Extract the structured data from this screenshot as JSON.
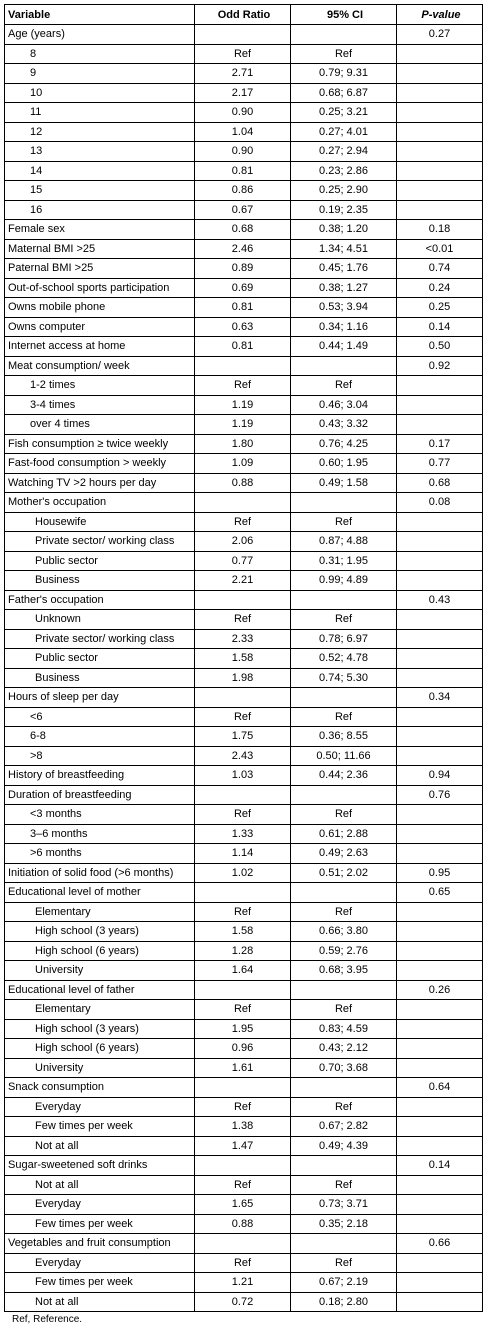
{
  "table": {
    "headers": [
      "Variable",
      "Odd Ratio",
      "95% CI",
      "P-value"
    ],
    "rows": [
      {
        "v": "Age (years)",
        "or": "",
        "ci": "",
        "p": "0.27",
        "level": 0
      },
      {
        "v": "8",
        "or": "Ref",
        "ci": "Ref",
        "p": "",
        "level": 1
      },
      {
        "v": "9",
        "or": "2.71",
        "ci": "0.79; 9.31",
        "p": "",
        "level": 1
      },
      {
        "v": "10",
        "or": "2.17",
        "ci": "0.68; 6.87",
        "p": "",
        "level": 1
      },
      {
        "v": "11",
        "or": "0.90",
        "ci": "0.25; 3.21",
        "p": "",
        "level": 1
      },
      {
        "v": "12",
        "or": "1.04",
        "ci": "0.27; 4.01",
        "p": "",
        "level": 1
      },
      {
        "v": "13",
        "or": "0.90",
        "ci": "0.27; 2.94",
        "p": "",
        "level": 1
      },
      {
        "v": "14",
        "or": "0.81",
        "ci": "0.23; 2.86",
        "p": "",
        "level": 1
      },
      {
        "v": "15",
        "or": "0.86",
        "ci": "0.25; 2.90",
        "p": "",
        "level": 1
      },
      {
        "v": "16",
        "or": "0.67",
        "ci": "0.19; 2.35",
        "p": "",
        "level": 1
      },
      {
        "v": "Female sex",
        "or": "0.68",
        "ci": "0.38; 1.20",
        "p": "0.18",
        "level": 0
      },
      {
        "v": "Maternal BMI >25",
        "or": "2.46",
        "ci": "1.34; 4.51",
        "p": "<0.01",
        "level": 0
      },
      {
        "v": "Paternal BMI >25",
        "or": "0.89",
        "ci": "0.45; 1.76",
        "p": "0.74",
        "level": 0
      },
      {
        "v": "Out-of-school sports participation",
        "or": "0.69",
        "ci": "0.38; 1.27",
        "p": "0.24",
        "level": 0
      },
      {
        "v": "Owns mobile phone",
        "or": "0.81",
        "ci": "0.53; 3.94",
        "p": "0.25",
        "level": 0
      },
      {
        "v": "Owns computer",
        "or": "0.63",
        "ci": "0.34; 1.16",
        "p": "0.14",
        "level": 0
      },
      {
        "v": "Internet access at home",
        "or": "0.81",
        "ci": "0.44; 1.49",
        "p": "0.50",
        "level": 0
      },
      {
        "v": "Meat consumption/ week",
        "or": "",
        "ci": "",
        "p": "0.92",
        "level": 0
      },
      {
        "v": "1-2 times",
        "or": "Ref",
        "ci": "Ref",
        "p": "",
        "level": 1
      },
      {
        "v": "3-4 times",
        "or": "1.19",
        "ci": "0.46; 3.04",
        "p": "",
        "level": 1
      },
      {
        "v": "over 4 times",
        "or": "1.19",
        "ci": "0.43; 3.32",
        "p": "",
        "level": 1
      },
      {
        "v": "Fish consumption ≥ twice weekly",
        "or": "1.80",
        "ci": "0.76; 4.25",
        "p": "0.17",
        "level": 0
      },
      {
        "v": "Fast-food consumption  > weekly",
        "or": "1.09",
        "ci": "0.60; 1.95",
        "p": "0.77",
        "level": 0
      },
      {
        "v": "Watching TV  >2 hours per day",
        "or": "0.88",
        "ci": "0.49; 1.58",
        "p": "0.68",
        "level": 0
      },
      {
        "v": "Mother's occupation",
        "or": "",
        "ci": "",
        "p": "0.08",
        "level": 0
      },
      {
        "v": "Housewife",
        "or": "Ref",
        "ci": "Ref",
        "p": "",
        "level": 2
      },
      {
        "v": "Private sector/ working class",
        "or": "2.06",
        "ci": "0.87; 4.88",
        "p": "",
        "level": 2
      },
      {
        "v": "Public sector",
        "or": "0.77",
        "ci": "0.31; 1.95",
        "p": "",
        "level": 2
      },
      {
        "v": "Business",
        "or": "2.21",
        "ci": "0.99; 4.89",
        "p": "",
        "level": 2
      },
      {
        "v": "Father's occupation",
        "or": "",
        "ci": "",
        "p": "0.43",
        "level": 0
      },
      {
        "v": "Unknown",
        "or": "Ref",
        "ci": "Ref",
        "p": "",
        "level": 2
      },
      {
        "v": "Private sector/ working class",
        "or": "2.33",
        "ci": "0.78; 6.97",
        "p": "",
        "level": 2
      },
      {
        "v": "Public sector",
        "or": "1.58",
        "ci": "0.52; 4.78",
        "p": "",
        "level": 2
      },
      {
        "v": "Business",
        "or": "1.98",
        "ci": "0.74; 5.30",
        "p": "",
        "level": 2
      },
      {
        "v": "Hours of sleep per day",
        "or": "",
        "ci": "",
        "p": "0.34",
        "level": 0
      },
      {
        "v": "<6",
        "or": "Ref",
        "ci": "Ref",
        "p": "",
        "level": 1
      },
      {
        "v": "6-8",
        "or": "1.75",
        "ci": "0.36; 8.55",
        "p": "",
        "level": 1
      },
      {
        "v": ">8",
        "or": "2.43",
        "ci": "0.50; 11.66",
        "p": "",
        "level": 1
      },
      {
        "v": "History of breastfeeding",
        "or": "1.03",
        "ci": "0.44; 2.36",
        "p": "0.94",
        "level": 0
      },
      {
        "v": "Duration of breastfeeding",
        "or": "",
        "ci": "",
        "p": "0.76",
        "level": 0
      },
      {
        "v": "<3 months",
        "or": "Ref",
        "ci": "Ref",
        "p": "",
        "level": 1
      },
      {
        "v": "3–6 months",
        "or": "1.33",
        "ci": "0.61; 2.88",
        "p": "",
        "level": 1
      },
      {
        "v": ">6 months",
        "or": "1.14",
        "ci": "0.49; 2.63",
        "p": "",
        "level": 1
      },
      {
        "v": "Initiation of solid food (>6 months)",
        "or": "1.02",
        "ci": "0.51; 2.02",
        "p": "0.95",
        "level": 0
      },
      {
        "v": "Educational level of mother",
        "or": "",
        "ci": "",
        "p": "0.65",
        "level": 0
      },
      {
        "v": "Elementary",
        "or": "Ref",
        "ci": "Ref",
        "p": "",
        "level": 2
      },
      {
        "v": "High school (3 years)",
        "or": "1.58",
        "ci": "0.66; 3.80",
        "p": "",
        "level": 2
      },
      {
        "v": "High school (6 years)",
        "or": "1.28",
        "ci": "0.59; 2.76",
        "p": "",
        "level": 2
      },
      {
        "v": "University",
        "or": "1.64",
        "ci": "0.68; 3.95",
        "p": "",
        "level": 2
      },
      {
        "v": "Educational level of father",
        "or": "",
        "ci": "",
        "p": "0.26",
        "level": 0
      },
      {
        "v": "Elementary",
        "or": "Ref",
        "ci": "Ref",
        "p": "",
        "level": 2
      },
      {
        "v": "High school (3 years)",
        "or": "1.95",
        "ci": "0.83; 4.59",
        "p": "",
        "level": 2
      },
      {
        "v": "High school (6 years)",
        "or": "0.96",
        "ci": "0.43; 2.12",
        "p": "",
        "level": 2
      },
      {
        "v": "University",
        "or": "1.61",
        "ci": "0.70; 3.68",
        "p": "",
        "level": 2
      },
      {
        "v": "Snack consumption",
        "or": "",
        "ci": "",
        "p": "0.64",
        "level": 0
      },
      {
        "v": "Everyday",
        "or": "Ref",
        "ci": "Ref",
        "p": "",
        "level": 2
      },
      {
        "v": "Few times per week",
        "or": "1.38",
        "ci": "0.67; 2.82",
        "p": "",
        "level": 2
      },
      {
        "v": "Not at all",
        "or": "1.47",
        "ci": "0.49; 4.39",
        "p": "",
        "level": 2
      },
      {
        "v": "Sugar-sweetened soft drinks",
        "or": "",
        "ci": "",
        "p": "0.14",
        "level": 0
      },
      {
        "v": "Not at all",
        "or": "Ref",
        "ci": "Ref",
        "p": "",
        "level": 2
      },
      {
        "v": "Everyday",
        "or": "1.65",
        "ci": "0.73; 3.71",
        "p": "",
        "level": 2
      },
      {
        "v": "Few times per week",
        "or": "0.88",
        "ci": "0.35; 2.18",
        "p": "",
        "level": 2
      },
      {
        "v": "Vegetables and fruit consumption",
        "or": "",
        "ci": "",
        "p": "0.66",
        "level": 0
      },
      {
        "v": "Everyday",
        "or": "Ref",
        "ci": "Ref",
        "p": "",
        "level": 2
      },
      {
        "v": "Few times per week",
        "or": "1.21",
        "ci": "0.67; 2.19",
        "p": "",
        "level": 2
      },
      {
        "v": "Not at all",
        "or": "0.72",
        "ci": "0.18; 2.80",
        "p": "",
        "level": 2
      }
    ]
  },
  "footnote": "Ref, Reference."
}
